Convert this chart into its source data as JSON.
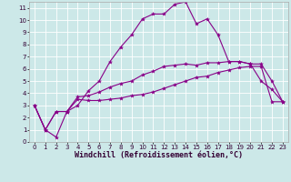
{
  "xlabel": "Windchill (Refroidissement éolien,°C)",
  "background_color": "#cce8e8",
  "grid_color": "#ffffff",
  "line_color": "#880088",
  "xlim": [
    -0.5,
    23.5
  ],
  "ylim": [
    0,
    11.5
  ],
  "xticks": [
    0,
    1,
    2,
    3,
    4,
    5,
    6,
    7,
    8,
    9,
    10,
    11,
    12,
    13,
    14,
    15,
    16,
    17,
    18,
    19,
    20,
    21,
    22,
    23
  ],
  "yticks": [
    0,
    1,
    2,
    3,
    4,
    5,
    6,
    7,
    8,
    9,
    10,
    11
  ],
  "curve1_x": [
    0,
    1,
    2,
    3,
    4,
    5,
    6,
    7,
    8,
    9,
    10,
    11,
    12,
    13,
    14,
    15,
    16,
    17,
    18,
    19,
    20,
    21,
    22,
    23
  ],
  "curve1_y": [
    3.0,
    1.0,
    0.4,
    2.5,
    3.0,
    4.2,
    5.0,
    6.6,
    7.8,
    8.8,
    10.1,
    10.5,
    10.5,
    11.3,
    11.5,
    9.7,
    10.1,
    8.8,
    6.6,
    6.6,
    6.4,
    5.0,
    4.3,
    3.3
  ],
  "curve2_x": [
    0,
    1,
    2,
    3,
    4,
    5,
    6,
    7,
    8,
    9,
    10,
    11,
    12,
    13,
    14,
    15,
    16,
    17,
    18,
    19,
    20,
    21,
    22,
    23
  ],
  "curve2_y": [
    3.0,
    1.0,
    2.5,
    2.5,
    3.7,
    3.8,
    4.1,
    4.5,
    4.8,
    5.0,
    5.5,
    5.8,
    6.2,
    6.3,
    6.4,
    6.3,
    6.5,
    6.5,
    6.6,
    6.6,
    6.4,
    6.4,
    5.0,
    3.3
  ],
  "curve3_x": [
    0,
    1,
    2,
    3,
    4,
    5,
    6,
    7,
    8,
    9,
    10,
    11,
    12,
    13,
    14,
    15,
    16,
    17,
    18,
    19,
    20,
    21,
    22,
    23
  ],
  "curve3_y": [
    3.0,
    1.0,
    2.5,
    2.5,
    3.5,
    3.4,
    3.4,
    3.5,
    3.6,
    3.8,
    3.9,
    4.1,
    4.4,
    4.7,
    5.0,
    5.3,
    5.4,
    5.7,
    5.9,
    6.1,
    6.2,
    6.2,
    3.3,
    3.3
  ],
  "marker": "*",
  "markersize": 3,
  "linewidth": 0.8,
  "tick_fontsize": 5,
  "label_fontsize": 6
}
